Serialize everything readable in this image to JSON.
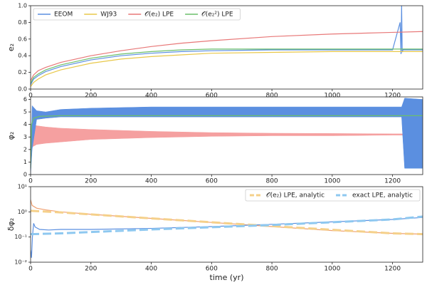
{
  "chart_data": [
    {
      "type": "line",
      "ylabel": "e₂",
      "legend": "upper left",
      "xlim": [
        0,
        1300
      ],
      "xticks": [
        0,
        200,
        400,
        600,
        800,
        1000,
        1200
      ],
      "ylim": [
        0,
        1
      ],
      "yticks": [
        {
          "value": 0,
          "label": "0.0"
        },
        0.2,
        0.4,
        0.6,
        0.8,
        {
          "value": 1,
          "label": "1.0"
        }
      ],
      "series": [
        {
          "name": "EEOM",
          "color": "#5b8fe0",
          "x": [
            0,
            10,
            25,
            50,
            100,
            200,
            300,
            400,
            500,
            600,
            800,
            1000,
            1200,
            1225,
            1228,
            1230,
            1232,
            1235,
            1300
          ],
          "values": [
            0.05,
            0.12,
            0.16,
            0.21,
            0.27,
            0.35,
            0.4,
            0.43,
            0.45,
            0.46,
            0.47,
            0.47,
            0.47,
            0.8,
            0.42,
            1.0,
            0.45,
            0.47,
            0.47
          ]
        },
        {
          "name": "WJ93",
          "color": "#e8c84a",
          "x": [
            0,
            10,
            25,
            50,
            100,
            200,
            300,
            400,
            500,
            600,
            800,
            1000,
            1200,
            1300
          ],
          "values": [
            0.03,
            0.08,
            0.12,
            0.17,
            0.23,
            0.31,
            0.36,
            0.39,
            0.41,
            0.43,
            0.44,
            0.45,
            0.45,
            0.45
          ]
        },
        {
          "name": "𝒪(e₂) LPE",
          "color": "#e87878",
          "x": [
            0,
            10,
            25,
            50,
            100,
            200,
            300,
            400,
            500,
            600,
            800,
            1000,
            1200,
            1300
          ],
          "values": [
            0.1,
            0.17,
            0.22,
            0.26,
            0.32,
            0.4,
            0.46,
            0.51,
            0.55,
            0.58,
            0.63,
            0.66,
            0.68,
            0.69
          ]
        },
        {
          "name": "𝒪(e₂²) LPE",
          "color": "#6cbf6c",
          "x": [
            0,
            10,
            25,
            50,
            100,
            200,
            300,
            400,
            500,
            600,
            800,
            1000,
            1200,
            1300
          ],
          "values": [
            0.07,
            0.14,
            0.18,
            0.23,
            0.29,
            0.37,
            0.42,
            0.45,
            0.47,
            0.48,
            0.48,
            0.48,
            0.48,
            0.48
          ]
        }
      ]
    },
    {
      "type": "line",
      "ylabel": "φ₂",
      "xlim": [
        0,
        1300
      ],
      "xticks": [
        0,
        200,
        400,
        600,
        800,
        1000,
        1200
      ],
      "ylim": [
        0,
        6.2
      ],
      "yticks": [
        0,
        1,
        2,
        3,
        4,
        5,
        6
      ],
      "series": [
        {
          "color": "#f5a0a0",
          "x": [
            0,
            5,
            20,
            50,
            100,
            200,
            400,
            600,
            800,
            1000,
            1200,
            1300
          ],
          "low": [
            0.3,
            2.2,
            2.4,
            2.5,
            2.6,
            2.8,
            2.95,
            3.05,
            3.1,
            3.1,
            3.15,
            3.15
          ],
          "high": [
            0.5,
            4.0,
            3.9,
            3.8,
            3.7,
            3.6,
            3.45,
            3.35,
            3.3,
            3.28,
            3.25,
            3.25
          ]
        },
        {
          "color": "#5b8fe0",
          "x": [
            0,
            5,
            20,
            50,
            100,
            200,
            400,
            600,
            800,
            1000,
            1200,
            1230,
            1240,
            1300
          ],
          "low": [
            0,
            2,
            4.4,
            4.5,
            4.6,
            4.6,
            4.6,
            4.6,
            4.6,
            4.6,
            4.6,
            4.6,
            0.5,
            0.5
          ],
          "high": [
            0,
            5.5,
            5.1,
            5.0,
            5.2,
            5.3,
            5.4,
            5.4,
            5.4,
            5.4,
            5.4,
            5.4,
            6.1,
            6.0
          ]
        },
        {
          "color": "#6cbf6c",
          "x": [
            0,
            3,
            10,
            30,
            100,
            1300
          ],
          "values": [
            0.5,
            4.0,
            4.5,
            4.65,
            4.7,
            4.7
          ]
        }
      ]
    },
    {
      "type": "line",
      "ylabel": "δφ₂",
      "xlabel": "time (yr)",
      "legend": "upper right",
      "log_scale": true,
      "xlim": [
        0,
        1300
      ],
      "xticks": [
        0,
        200,
        400,
        600,
        800,
        1000,
        1200
      ],
      "ylim": [
        0.01,
        10
      ],
      "yticks": [
        {
          "value": 0.01,
          "label": "10⁻²"
        },
        {
          "value": 0.1,
          "label": "10⁻¹"
        },
        {
          "value": 1,
          "label": "10⁰"
        },
        {
          "value": 10,
          "label": "10¹"
        }
      ],
      "series": [
        {
          "color": "#f0a070",
          "x": [
            0,
            5,
            20,
            50,
            100,
            200,
            400,
            600,
            800,
            1000,
            1200,
            1300
          ],
          "values": [
            3,
            1.8,
            1.4,
            1.2,
            1.0,
            0.8,
            0.55,
            0.38,
            0.26,
            0.18,
            0.14,
            0.13
          ]
        },
        {
          "color": "#5b8fe0",
          "x": [
            0,
            3,
            6,
            10,
            15,
            30,
            60,
            100,
            200,
            400,
            600,
            800,
            1000,
            1200,
            1300
          ],
          "values": [
            0.03,
            0.015,
            0.1,
            0.35,
            0.25,
            0.2,
            0.19,
            0.2,
            0.2,
            0.22,
            0.26,
            0.32,
            0.4,
            0.5,
            0.6
          ]
        },
        {
          "name": "𝒪(e₂) LPE, analytic",
          "color": "#f5d08a",
          "dashed": true,
          "x": [
            0,
            100,
            400,
            800,
            1200,
            1300
          ],
          "values": [
            1.1,
            0.95,
            0.55,
            0.27,
            0.14,
            0.13
          ]
        },
        {
          "name": "exact LPE, analytic",
          "color": "#8ec8f0",
          "dashed": true,
          "x": [
            0,
            100,
            400,
            800,
            1200,
            1300
          ],
          "values": [
            0.13,
            0.14,
            0.2,
            0.3,
            0.5,
            0.65
          ]
        }
      ]
    }
  ]
}
